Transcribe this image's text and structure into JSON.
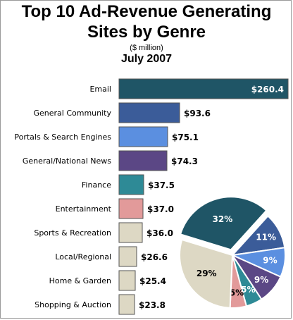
{
  "chart_data": {
    "type": "bar",
    "title_line1": "Top 10 Ad-Revenue Generating",
    "title_line2": "Sites by Genre",
    "subtitle": "($ million)",
    "date": "July 2007",
    "categories": [
      "Email",
      "General Community",
      "Portals & Search Engines",
      "General/National News",
      "Finance",
      "Entertainment",
      "Sports & Recreation",
      "Local/Regional",
      "Home & Garden",
      "Shopping & Auction"
    ],
    "values": [
      260.4,
      93.6,
      75.1,
      74.3,
      37.5,
      37.0,
      36.0,
      26.6,
      25.4,
      23.8
    ],
    "value_labels": [
      "$260.4",
      "$93.6",
      "$75.1",
      "$74.3",
      "$37.5",
      "$37.0",
      "$36.0",
      "$26.6",
      "$25.4",
      "$23.8"
    ],
    "colors": [
      "#1f5566",
      "#3b5c99",
      "#5b8fe0",
      "#5b4785",
      "#2e8a96",
      "#e29a9a",
      "#ddd8c4",
      "#ddd8c4",
      "#ddd8c4",
      "#ddd8c4"
    ],
    "pie": {
      "type": "pie",
      "slices": [
        {
          "label": "32%",
          "value": 32,
          "color": "#1f5566"
        },
        {
          "label": "11%",
          "value": 11,
          "color": "#3b5c99"
        },
        {
          "label": "9%",
          "value": 9,
          "color": "#5b8fe0"
        },
        {
          "label": "9%",
          "value": 9,
          "color": "#5b4785"
        },
        {
          "label": "5%",
          "value": 5,
          "color": "#2e8a96"
        },
        {
          "label": "5%",
          "value": 5,
          "color": "#e29a9a"
        },
        {
          "label": "29%",
          "value": 29,
          "color": "#ddd8c4"
        }
      ]
    }
  }
}
